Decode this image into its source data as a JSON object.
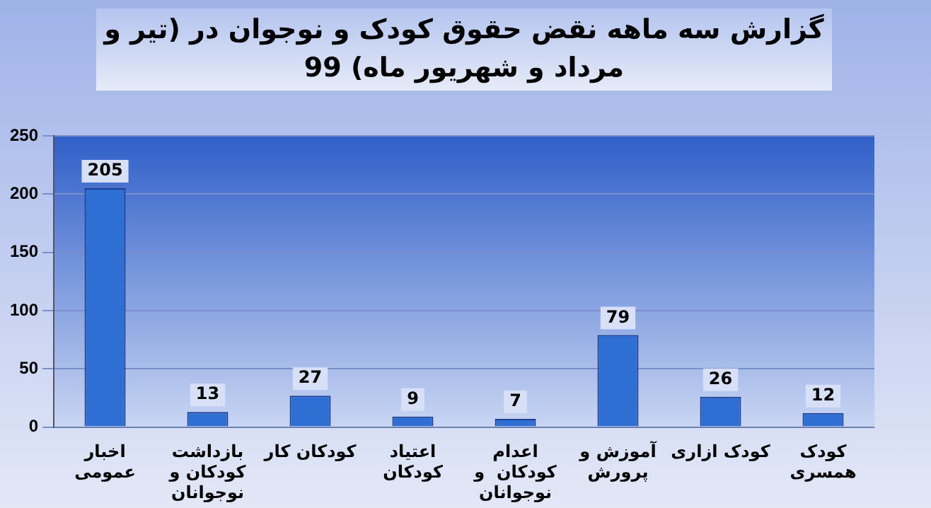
{
  "chart_data": {
    "type": "bar",
    "title": "گزارش سه ماهه نقض حقوق کودک و نوجوان در (تیر و مرداد و شهریور ماه) 99",
    "categories": [
      "اخبار\nعمومی",
      "بازداشت\nکودکان و\nنوجوانان",
      "کودکان کار",
      "اعتیاد\nکودکان",
      "اعدام\nکودکان  و\nنوجوانان",
      "آموزش و\nپرورش",
      "کودک ازاری",
      "کودک\nهمسری"
    ],
    "values": [
      205,
      13,
      27,
      9,
      7,
      79,
      26,
      12
    ],
    "color": "#2f6fd3",
    "ylim": [
      0,
      250
    ],
    "yticks": [
      0,
      50,
      100,
      150,
      200,
      250
    ],
    "grid": "y",
    "data_labels": true,
    "legend": false
  }
}
